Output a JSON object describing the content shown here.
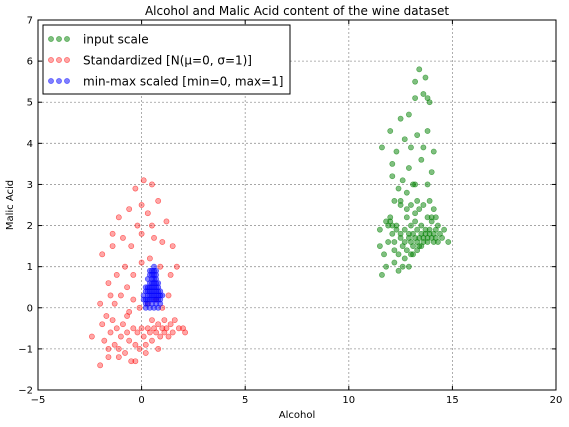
{
  "chart_data": {
    "type": "scatter",
    "title": "Alcohol and Malic Acid content of the wine dataset",
    "xlabel": "Alcohol",
    "ylabel": "Malic Acid",
    "xlim": [
      -5,
      20
    ],
    "ylim": [
      -2,
      7
    ],
    "xticks": [
      "−5",
      "0",
      "5",
      "10",
      "15",
      "20"
    ],
    "yticks": [
      "−2",
      "−1",
      "0",
      "1",
      "2",
      "3",
      "4",
      "5",
      "6",
      "7"
    ],
    "grid": true,
    "legend_position": "top-left",
    "series": [
      {
        "name": "input scale",
        "color": "#008000",
        "points": [
          [
            11.6,
            0.8
          ],
          [
            11.8,
            1.0
          ],
          [
            11.5,
            1.5
          ],
          [
            11.7,
            1.3
          ],
          [
            11.9,
            1.6
          ],
          [
            11.9,
            2.0
          ],
          [
            12.0,
            2.2
          ],
          [
            12.1,
            1.8
          ],
          [
            12.2,
            1.1
          ],
          [
            12.2,
            1.6
          ],
          [
            12.3,
            2.0
          ],
          [
            12.4,
            0.9
          ],
          [
            12.4,
            1.3
          ],
          [
            12.5,
            1.7
          ],
          [
            12.5,
            2.5
          ],
          [
            12.6,
            1.0
          ],
          [
            12.6,
            1.5
          ],
          [
            12.7,
            1.2
          ],
          [
            12.7,
            1.9
          ],
          [
            12.8,
            2.2
          ],
          [
            12.8,
            1.4
          ],
          [
            12.9,
            1.7
          ],
          [
            12.9,
            1.0
          ],
          [
            13.0,
            1.6
          ],
          [
            13.0,
            2.0
          ],
          [
            13.1,
            1.8
          ],
          [
            13.1,
            1.3
          ],
          [
            13.2,
            2.1
          ],
          [
            13.2,
            1.7
          ],
          [
            13.3,
            1.6
          ],
          [
            13.3,
            1.9
          ],
          [
            13.4,
            1.7
          ],
          [
            13.4,
            1.5
          ],
          [
            13.5,
            1.8
          ],
          [
            13.5,
            2.0
          ],
          [
            13.6,
            1.7
          ],
          [
            13.6,
            1.6
          ],
          [
            13.7,
            1.9
          ],
          [
            13.7,
            1.8
          ],
          [
            13.8,
            1.7
          ],
          [
            13.8,
            1.6
          ],
          [
            13.9,
            1.9
          ],
          [
            13.9,
            1.8
          ],
          [
            14.0,
            1.7
          ],
          [
            14.0,
            2.1
          ],
          [
            14.1,
            1.8
          ],
          [
            14.1,
            1.6
          ],
          [
            14.2,
            1.9
          ],
          [
            14.2,
            1.7
          ],
          [
            14.3,
            1.6
          ],
          [
            14.4,
            1.8
          ],
          [
            14.5,
            1.7
          ],
          [
            14.8,
            1.6
          ],
          [
            14.6,
            1.9
          ],
          [
            14.3,
            2.0
          ],
          [
            13.1,
            1.5
          ],
          [
            13.3,
            1.4
          ],
          [
            13.5,
            1.5
          ],
          [
            12.9,
            1.8
          ],
          [
            12.7,
            1.6
          ],
          [
            12.5,
            1.8
          ],
          [
            12.3,
            1.9
          ],
          [
            12.1,
            2.0
          ],
          [
            12.0,
            2.1
          ],
          [
            14.2,
            2.2
          ],
          [
            14.0,
            2.2
          ],
          [
            11.8,
            2.1
          ],
          [
            11.5,
            1.9
          ],
          [
            12.2,
            2.6
          ],
          [
            12.5,
            2.6
          ],
          [
            12.8,
            2.4
          ],
          [
            13.0,
            2.5
          ],
          [
            13.2,
            2.3
          ],
          [
            13.4,
            2.4
          ],
          [
            13.6,
            2.5
          ],
          [
            13.8,
            2.2
          ],
          [
            13.9,
            2.6
          ],
          [
            14.1,
            2.4
          ],
          [
            12.4,
            2.9
          ],
          [
            12.6,
            3.1
          ],
          [
            12.9,
            3.4
          ],
          [
            13.2,
            3.0
          ],
          [
            13.5,
            3.6
          ],
          [
            13.8,
            3.0
          ],
          [
            14.0,
            3.3
          ],
          [
            12.1,
            3.5
          ],
          [
            12.3,
            3.8
          ],
          [
            12.7,
            4.1
          ],
          [
            13.0,
            3.9
          ],
          [
            13.3,
            4.2
          ],
          [
            13.6,
            3.9
          ],
          [
            13.8,
            4.3
          ],
          [
            14.1,
            3.8
          ],
          [
            12.0,
            4.3
          ],
          [
            12.5,
            4.6
          ],
          [
            12.9,
            4.7
          ],
          [
            13.2,
            5.1
          ],
          [
            13.6,
            5.2
          ],
          [
            13.8,
            5.1
          ],
          [
            13.9,
            5.0
          ],
          [
            13.2,
            5.5
          ],
          [
            13.7,
            5.6
          ],
          [
            13.4,
            5.8
          ],
          [
            12.1,
            3.2
          ],
          [
            11.6,
            3.9
          ],
          [
            13.1,
            3.0
          ],
          [
            13.3,
            2.6
          ],
          [
            12.8,
            2.8
          ],
          [
            12.2,
            1.4
          ],
          [
            13.0,
            1.3
          ]
        ]
      },
      {
        "name": "Standardized [N(μ=0,  σ=1)]",
        "color": "#ff0000",
        "points": [
          [
            -2.0,
            -1.4
          ],
          [
            -1.8,
            -0.8
          ],
          [
            -1.6,
            -1.2
          ],
          [
            -1.5,
            -0.6
          ],
          [
            -1.4,
            -0.3
          ],
          [
            -1.3,
            -0.9
          ],
          [
            -1.2,
            -0.5
          ],
          [
            -1.1,
            -1.0
          ],
          [
            -1.0,
            -0.7
          ],
          [
            -0.9,
            -0.4
          ],
          [
            -0.8,
            -1.1
          ],
          [
            -0.7,
            -0.6
          ],
          [
            -0.6,
            -0.8
          ],
          [
            -0.5,
            -1.3
          ],
          [
            -0.4,
            -0.5
          ],
          [
            -0.3,
            -0.9
          ],
          [
            -0.2,
            -0.6
          ],
          [
            -0.1,
            -1.0
          ],
          [
            0.0,
            -0.5
          ],
          [
            0.1,
            -0.7
          ],
          [
            0.2,
            -0.9
          ],
          [
            0.3,
            -0.5
          ],
          [
            0.4,
            -0.6
          ],
          [
            0.5,
            -0.8
          ],
          [
            0.6,
            -0.5
          ],
          [
            0.7,
            -0.6
          ],
          [
            0.8,
            -0.4
          ],
          [
            0.9,
            -0.7
          ],
          [
            1.0,
            -0.5
          ],
          [
            1.1,
            -0.6
          ],
          [
            1.2,
            -0.5
          ],
          [
            1.3,
            -0.7
          ],
          [
            1.4,
            -0.4
          ],
          [
            1.5,
            -0.6
          ],
          [
            1.6,
            -0.3
          ],
          [
            1.8,
            -0.5
          ],
          [
            2.1,
            -0.6
          ],
          [
            -2.4,
            -0.7
          ],
          [
            -1.7,
            -0.2
          ],
          [
            -1.3,
            0.1
          ],
          [
            -1.0,
            0.3
          ],
          [
            -0.7,
            0.5
          ],
          [
            -0.4,
            0.2
          ],
          [
            -0.1,
            0.0
          ],
          [
            0.3,
            0.1
          ],
          [
            0.7,
            0.2
          ],
          [
            1.0,
            0.0
          ],
          [
            1.3,
            0.3
          ],
          [
            -1.6,
            0.6
          ],
          [
            -1.2,
            0.8
          ],
          [
            -0.8,
            1.0
          ],
          [
            -0.4,
            0.8
          ],
          [
            0.0,
            1.1
          ],
          [
            0.4,
            1.2
          ],
          [
            0.9,
            1.0
          ],
          [
            1.4,
            0.8
          ],
          [
            -1.9,
            1.3
          ],
          [
            -1.4,
            1.5
          ],
          [
            -0.9,
            1.7
          ],
          [
            -0.5,
            1.5
          ],
          [
            0.0,
            1.8
          ],
          [
            0.5,
            2.0
          ],
          [
            1.0,
            1.6
          ],
          [
            1.5,
            1.5
          ],
          [
            -1.1,
            2.2
          ],
          [
            -0.6,
            2.4
          ],
          [
            0.0,
            2.5
          ],
          [
            0.3,
            2.3
          ],
          [
            0.8,
            2.6
          ],
          [
            -0.3,
            2.9
          ],
          [
            0.1,
            3.1
          ],
          [
            0.5,
            3.0
          ],
          [
            -1.4,
            1.8
          ],
          [
            -0.2,
            2.0
          ],
          [
            0.6,
            1.7
          ],
          [
            1.2,
            2.1
          ],
          [
            -0.7,
            -0.2
          ],
          [
            -1.5,
            0.3
          ],
          [
            1.7,
            1.0
          ],
          [
            -2.0,
            0.1
          ],
          [
            0.2,
            -1.1
          ],
          [
            0.8,
            -1.0
          ],
          [
            -0.3,
            -1.3
          ],
          [
            -1.1,
            -1.2
          ],
          [
            1.1,
            -0.3
          ],
          [
            0.5,
            -0.3
          ],
          [
            -0.6,
            -0.1
          ],
          [
            -1.9,
            -0.4
          ],
          [
            2.0,
            -0.5
          ],
          [
            -1.6,
            -1.0
          ]
        ]
      },
      {
        "name": "min-max scaled [min=0, max=1]",
        "color": "#0000ff",
        "points": [
          [
            0.1,
            0.2
          ],
          [
            0.2,
            0.1
          ],
          [
            0.3,
            0.3
          ],
          [
            0.4,
            0.2
          ],
          [
            0.5,
            0.3
          ],
          [
            0.6,
            0.2
          ],
          [
            0.7,
            0.3
          ],
          [
            0.8,
            0.2
          ],
          [
            0.9,
            0.3
          ],
          [
            0.3,
            0.1
          ],
          [
            0.5,
            0.1
          ],
          [
            0.7,
            0.1
          ],
          [
            0.2,
            0.4
          ],
          [
            0.4,
            0.4
          ],
          [
            0.6,
            0.4
          ],
          [
            0.8,
            0.4
          ],
          [
            0.3,
            0.5
          ],
          [
            0.5,
            0.5
          ],
          [
            0.7,
            0.5
          ],
          [
            0.4,
            0.6
          ],
          [
            0.6,
            0.6
          ],
          [
            0.5,
            0.7
          ],
          [
            0.7,
            0.7
          ],
          [
            0.4,
            0.8
          ],
          [
            0.6,
            0.8
          ],
          [
            0.5,
            0.9
          ],
          [
            0.7,
            0.9
          ],
          [
            0.6,
            1.0
          ],
          [
            0.2,
            0.0
          ],
          [
            0.4,
            0.0
          ],
          [
            0.6,
            0.0
          ],
          [
            0.8,
            0.0
          ],
          [
            0.3,
            0.2
          ],
          [
            0.5,
            0.2
          ],
          [
            0.7,
            0.2
          ],
          [
            0.9,
            0.2
          ],
          [
            0.1,
            0.3
          ],
          [
            0.4,
            0.3
          ],
          [
            0.6,
            0.3
          ],
          [
            0.8,
            0.3
          ],
          [
            0.2,
            0.2
          ],
          [
            0.3,
            0.4
          ],
          [
            0.5,
            0.4
          ],
          [
            0.7,
            0.4
          ],
          [
            0.9,
            0.4
          ],
          [
            0.4,
            0.5
          ],
          [
            0.6,
            0.5
          ],
          [
            0.8,
            0.5
          ],
          [
            0.5,
            0.6
          ],
          [
            0.7,
            0.6
          ],
          [
            0.3,
            0.7
          ],
          [
            0.6,
            0.7
          ],
          [
            0.5,
            0.8
          ],
          [
            0.7,
            0.8
          ],
          [
            0.6,
            0.9
          ],
          [
            0.4,
            0.9
          ],
          [
            0.2,
            0.5
          ],
          [
            0.8,
            0.6
          ],
          [
            0.9,
            0.1
          ],
          [
            1.0,
            0.3
          ]
        ]
      }
    ]
  }
}
